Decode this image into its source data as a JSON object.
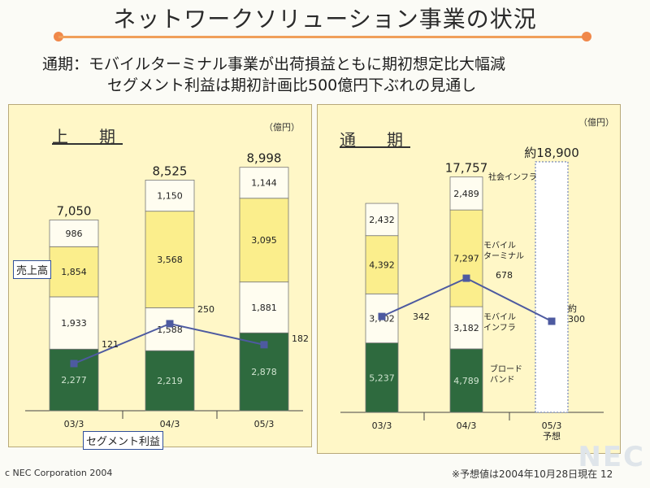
{
  "header": {
    "title": "ネットワークソリューション事業の状況",
    "subtitle_line1": "通期：モバイルターミナル事業が出荷損益ともに期初想定比大幅減",
    "subtitle_line2": "セグメント利益は期初計画比500億円下ぶれの見通し"
  },
  "footer": {
    "copyright": "c NEC Corporation 2004",
    "note": "※予想値は2004年10月28日現在 12",
    "logo": "NEC"
  },
  "colors": {
    "ブロードバンド": "#2e6a3e",
    "モバイルインフラ": "#fffdf0",
    "モバイルターミナル": "#fbee8c",
    "社会インフラ": "#fffdf0",
    "line": "#4d5aa0",
    "panel": "#fff7c7"
  },
  "chart_data": [
    {
      "type": "bar",
      "title": "上　期",
      "unit": "（億円）",
      "categories": [
        "03/3",
        "04/3",
        "05/3"
      ],
      "series": [
        {
          "name": "ブロードバンド",
          "values": [
            2277,
            2219,
            2878
          ]
        },
        {
          "name": "モバイルインフラ",
          "values": [
            1933,
            1588,
            1881
          ]
        },
        {
          "name": "モバイルターミナル",
          "values": [
            1854,
            3568,
            3095
          ]
        },
        {
          "name": "社会インフラ",
          "values": [
            986,
            1150,
            1144
          ]
        }
      ],
      "value_labels": [
        [
          "2,277",
          "1,933",
          "1,854",
          "986"
        ],
        [
          "2,219",
          "1,588",
          "3,568",
          "1,150"
        ],
        [
          "2,878",
          "1,881",
          "3,095",
          "1,144"
        ]
      ],
      "totals": [
        "7,050",
        "8,525",
        "8,998"
      ],
      "profit_line": {
        "name": "セグメント利益",
        "values": [
          121,
          250,
          182
        ],
        "labels": [
          "121",
          "250",
          "182"
        ]
      },
      "sales_label": "売上高",
      "ylim": [
        0,
        9500
      ]
    },
    {
      "type": "bar",
      "title": "通　期",
      "unit": "（億円）",
      "categories": [
        "03/3",
        "04/3",
        "05/3"
      ],
      "category_sublabels": [
        "",
        "",
        "予想"
      ],
      "series": [
        {
          "name": "ブロードバンド",
          "values": [
            5237,
            4789,
            null
          ]
        },
        {
          "name": "モバイルインフラ",
          "values": [
            3702,
            3182,
            null
          ]
        },
        {
          "name": "モバイルターミナル",
          "values": [
            4392,
            7297,
            null
          ]
        },
        {
          "name": "社会インフラ",
          "values": [
            2432,
            2489,
            null
          ]
        }
      ],
      "value_labels": [
        [
          "5,237",
          "3,702",
          "4,392",
          "2,432"
        ],
        [
          "4,789",
          "3,182",
          "7,297",
          "2,489"
        ],
        [
          "",
          "",
          "",
          ""
        ]
      ],
      "totals": [
        "",
        "17,757",
        "約18,900"
      ],
      "forecast_total": 18900,
      "profit_line": {
        "name": "セグメント利益",
        "values": [
          342,
          678,
          300
        ],
        "labels": [
          "342",
          "678",
          "約\n300"
        ]
      },
      "legend_labels": {
        "社会インフラ": "社会インフラ",
        "モバイルターミナル": "モバイル\nターミナル",
        "モバイルインフラ": "モバイル\nインフラ",
        "ブロードバンド": "ブロード\nバンド"
      },
      "ylim": [
        0,
        20000
      ]
    }
  ]
}
